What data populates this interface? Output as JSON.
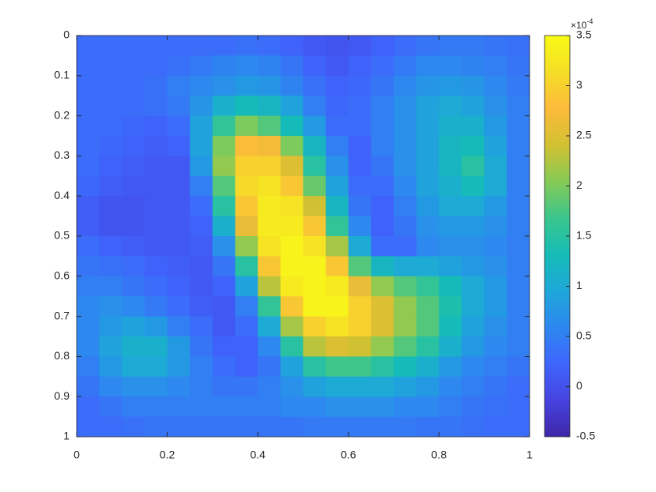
{
  "chart_data": {
    "type": "heatmap",
    "x": [
      0.025,
      0.075,
      0.125,
      0.175,
      0.225,
      0.275,
      0.325,
      0.375,
      0.425,
      0.475,
      0.525,
      0.575,
      0.625,
      0.675,
      0.725,
      0.775,
      0.825,
      0.875,
      0.925,
      0.975
    ],
    "y": [
      0.025,
      0.075,
      0.125,
      0.175,
      0.225,
      0.275,
      0.325,
      0.375,
      0.425,
      0.475,
      0.525,
      0.575,
      0.625,
      0.675,
      0.725,
      0.775,
      0.825,
      0.875,
      0.925,
      0.975
    ],
    "values": [
      [
        0.3,
        0.3,
        0.3,
        0.3,
        0.3,
        0.3,
        0.3,
        0.35,
        0.3,
        0.2,
        0.1,
        0.05,
        0.1,
        0.2,
        0.3,
        0.4,
        0.45,
        0.45,
        0.4,
        0.35
      ],
      [
        0.3,
        0.3,
        0.3,
        0.3,
        0.35,
        0.45,
        0.55,
        0.6,
        0.55,
        0.4,
        0.2,
        0.1,
        0.2,
        0.3,
        0.45,
        0.6,
        0.6,
        0.55,
        0.5,
        0.4
      ],
      [
        0.3,
        0.3,
        0.3,
        0.35,
        0.5,
        0.6,
        0.7,
        0.8,
        0.75,
        0.55,
        0.35,
        0.2,
        0.25,
        0.4,
        0.6,
        0.75,
        0.8,
        0.75,
        0.6,
        0.45
      ],
      [
        0.3,
        0.3,
        0.3,
        0.35,
        0.45,
        0.75,
        1.1,
        1.3,
        1.2,
        0.9,
        0.5,
        0.25,
        0.3,
        0.5,
        0.7,
        0.9,
        1.0,
        0.9,
        0.7,
        0.5
      ],
      [
        0.3,
        0.3,
        0.25,
        0.2,
        0.3,
        0.9,
        1.6,
        2.0,
        1.8,
        1.3,
        0.8,
        0.3,
        0.3,
        0.5,
        0.7,
        0.9,
        1.1,
        1.1,
        0.8,
        0.5
      ],
      [
        0.3,
        0.25,
        0.2,
        0.15,
        0.2,
        0.9,
        2.0,
        2.8,
        2.7,
        2.0,
        1.2,
        0.5,
        0.2,
        0.5,
        0.7,
        0.9,
        1.2,
        1.3,
        0.9,
        0.5
      ],
      [
        0.3,
        0.2,
        0.15,
        0.1,
        0.1,
        0.8,
        2.1,
        3.0,
        3.0,
        2.5,
        1.5,
        0.7,
        0.2,
        0.4,
        0.7,
        0.9,
        1.2,
        1.5,
        1.0,
        0.5
      ],
      [
        0.25,
        0.15,
        0.1,
        0.1,
        0.1,
        0.5,
        1.8,
        3.1,
        3.2,
        2.9,
        1.9,
        0.9,
        0.3,
        0.3,
        0.6,
        0.9,
        1.1,
        1.3,
        1.0,
        0.5
      ],
      [
        0.15,
        0.05,
        0.05,
        0.1,
        0.1,
        0.3,
        1.5,
        2.9,
        3.3,
        3.2,
        2.4,
        1.2,
        0.4,
        0.2,
        0.5,
        0.8,
        1.0,
        1.0,
        0.8,
        0.5
      ],
      [
        0.15,
        0.05,
        0.05,
        0.1,
        0.1,
        0.2,
        1.1,
        2.6,
        3.3,
        3.3,
        2.9,
        1.6,
        0.6,
        0.2,
        0.4,
        0.7,
        0.8,
        0.8,
        0.7,
        0.5
      ],
      [
        0.3,
        0.2,
        0.15,
        0.1,
        0.1,
        0.15,
        0.7,
        2.1,
        3.2,
        3.4,
        3.2,
        2.2,
        1.0,
        0.3,
        0.3,
        0.6,
        0.7,
        0.7,
        0.6,
        0.5
      ],
      [
        0.4,
        0.35,
        0.3,
        0.2,
        0.15,
        0.1,
        0.4,
        1.5,
        2.9,
        3.4,
        3.4,
        2.9,
        1.8,
        1.2,
        1.0,
        1.0,
        0.9,
        0.8,
        0.7,
        0.5
      ],
      [
        0.5,
        0.5,
        0.4,
        0.3,
        0.2,
        0.1,
        0.2,
        0.9,
        2.3,
        3.3,
        3.4,
        3.3,
        2.6,
        2.1,
        1.8,
        1.6,
        1.3,
        1.0,
        0.8,
        0.5
      ],
      [
        0.6,
        0.7,
        0.6,
        0.45,
        0.3,
        0.15,
        0.1,
        0.5,
        1.6,
        2.9,
        3.4,
        3.4,
        3.0,
        2.5,
        2.1,
        1.8,
        1.4,
        1.0,
        0.8,
        0.5
      ],
      [
        0.6,
        0.8,
        0.9,
        0.8,
        0.5,
        0.3,
        0.1,
        0.3,
        1.0,
        2.2,
        3.0,
        3.2,
        3.0,
        2.5,
        2.1,
        1.8,
        1.3,
        0.9,
        0.7,
        0.5
      ],
      [
        0.6,
        0.9,
        1.1,
        1.1,
        0.8,
        0.4,
        0.2,
        0.2,
        0.6,
        1.5,
        2.3,
        2.5,
        2.4,
        2.1,
        1.8,
        1.5,
        1.1,
        0.8,
        0.6,
        0.5
      ],
      [
        0.5,
        0.8,
        1.0,
        1.0,
        0.8,
        0.5,
        0.3,
        0.2,
        0.4,
        0.9,
        1.5,
        1.7,
        1.7,
        1.5,
        1.3,
        1.1,
        0.8,
        0.6,
        0.5,
        0.4
      ],
      [
        0.4,
        0.6,
        0.7,
        0.7,
        0.6,
        0.5,
        0.4,
        0.4,
        0.5,
        0.7,
        0.9,
        1.0,
        1.0,
        1.0,
        0.9,
        0.8,
        0.6,
        0.5,
        0.4,
        0.3
      ],
      [
        0.3,
        0.4,
        0.5,
        0.5,
        0.5,
        0.5,
        0.5,
        0.5,
        0.5,
        0.6,
        0.6,
        0.7,
        0.7,
        0.7,
        0.6,
        0.6,
        0.5,
        0.4,
        0.35,
        0.3
      ],
      [
        0.3,
        0.3,
        0.35,
        0.4,
        0.4,
        0.4,
        0.4,
        0.4,
        0.4,
        0.4,
        0.45,
        0.45,
        0.45,
        0.45,
        0.45,
        0.4,
        0.4,
        0.35,
        0.3,
        0.3
      ]
    ],
    "xlim": [
      0,
      1
    ],
    "xticks": [
      0,
      0.2,
      0.4,
      0.6,
      0.8,
      1
    ],
    "ylim": [
      0,
      1
    ],
    "yticks": [
      0,
      0.1,
      0.2,
      0.3,
      0.4,
      0.5,
      0.6,
      0.7,
      0.8,
      0.9,
      1
    ],
    "y_reversed": true,
    "clim": [
      -0.5,
      3.5
    ],
    "cticks": [
      -0.5,
      0,
      0.5,
      1,
      1.5,
      2,
      2.5,
      3,
      3.5
    ],
    "colorbar_multiplier": {
      "base": "×10",
      "exponent": "-4"
    },
    "colormap": [
      "#3e26a8",
      "#4743e0",
      "#3e65fc",
      "#2d87f0",
      "#1ea7d9",
      "#15bcb6",
      "#3bc68d",
      "#86ca56",
      "#d2c132",
      "#fdba3b",
      "#f5de27",
      "#f9fb15"
    ]
  }
}
